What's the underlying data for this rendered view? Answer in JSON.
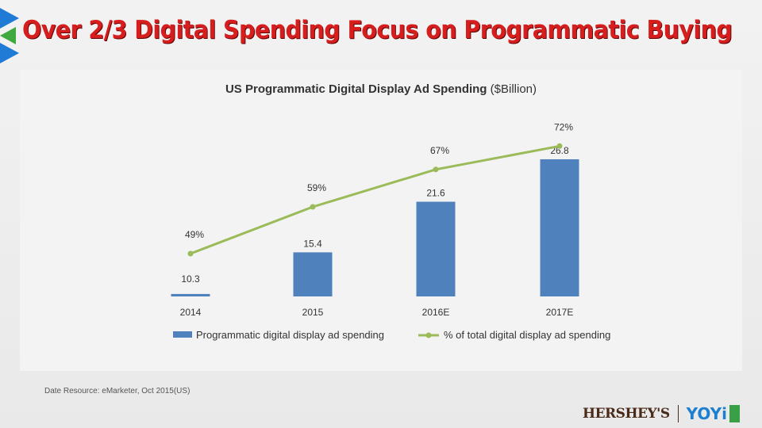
{
  "slide": {
    "title": "Over 2/3 Digital Spending Focus on Programmatic Buying",
    "source": "Date Resource: eMarketer, Oct 2015(US)",
    "logos": {
      "brand1": "HERSHEY'S",
      "brand2": "YOYi"
    }
  },
  "chart_data": {
    "type": "bar",
    "title": "US Programmatic Digital Display Ad Spending",
    "title_suffix": "($Billion)",
    "categories": [
      "2014",
      "2015",
      "2016E",
      "2017E"
    ],
    "series": [
      {
        "name": "Programmatic digital display ad spending",
        "type": "bar",
        "color": "#4f81bd",
        "values": [
          10.3,
          15.4,
          21.6,
          26.8
        ],
        "labels": [
          "10.3",
          "15.4",
          "21.6",
          "26.8"
        ]
      },
      {
        "name": "% of total digital display ad spending",
        "type": "line",
        "color": "#9bbb59",
        "values": [
          49,
          59,
          67,
          72
        ],
        "labels": [
          "49%",
          "59%",
          "67%",
          "72%"
        ]
      }
    ],
    "legend": "bottom",
    "grid": false
  }
}
